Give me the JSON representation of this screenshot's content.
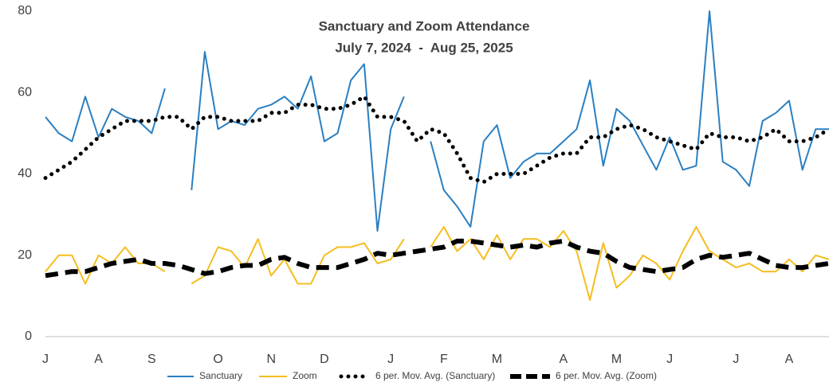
{
  "chart_data": {
    "type": "line",
    "title": "Sanctuary and Zoom Attendance",
    "subtitle": "July 7, 2024  -  Aug 25, 2025",
    "categories": [
      "J",
      null,
      null,
      null,
      "A",
      null,
      null,
      null,
      "S",
      null,
      null,
      null,
      null,
      "O",
      null,
      null,
      null,
      "N",
      null,
      null,
      null,
      "D",
      null,
      null,
      null,
      null,
      "J",
      null,
      null,
      null,
      "F",
      null,
      null,
      null,
      "M",
      null,
      null,
      null,
      null,
      "A",
      null,
      null,
      null,
      "M",
      null,
      null,
      null,
      "J",
      null,
      null,
      null,
      null,
      "J",
      null,
      null,
      null,
      "A",
      null,
      null,
      null
    ],
    "series": [
      {
        "name": "Sanctuary",
        "color": "#2a7fc1",
        "line_style": "solid",
        "values": [
          54,
          50,
          48,
          59,
          49,
          56,
          54,
          53,
          50,
          61,
          null,
          36,
          70,
          51,
          53,
          52,
          56,
          57,
          59,
          56,
          64,
          48,
          50,
          63,
          67,
          26,
          51,
          59,
          null,
          48,
          36,
          32,
          27,
          48,
          52,
          39,
          43,
          45,
          45,
          48,
          51,
          63,
          42,
          56,
          53,
          47,
          41,
          49,
          41,
          42,
          80,
          43,
          41,
          37,
          53,
          55,
          58,
          41,
          51,
          51
        ]
      },
      {
        "name": "Zoom",
        "color": "#f5bd1f",
        "line_style": "solid",
        "values": [
          16,
          20,
          20,
          13,
          20,
          18,
          22,
          18,
          18,
          16,
          null,
          13,
          15,
          22,
          21,
          17,
          24,
          15,
          19,
          13,
          13,
          20,
          22,
          22,
          23,
          18,
          19,
          24,
          null,
          22,
          27,
          21,
          24,
          19,
          25,
          19,
          24,
          24,
          22,
          26,
          21,
          9,
          23,
          12,
          15,
          20,
          18,
          14,
          21,
          27,
          21,
          19,
          17,
          18,
          16,
          16,
          19,
          16,
          20,
          19
        ]
      },
      {
        "name": "6 per. Mov. Avg. (Sanctuary)",
        "color": "#000000",
        "line_style": "dotted",
        "values": [
          39,
          41,
          43,
          46,
          49,
          51,
          53,
          53,
          53,
          54,
          54,
          51,
          54,
          54,
          53,
          53,
          53,
          55,
          55,
          57,
          57,
          56,
          56,
          57,
          59,
          54,
          54,
          53,
          48,
          51,
          50,
          45,
          39,
          38,
          40,
          40,
          40,
          42,
          44,
          45,
          45,
          49,
          49,
          51,
          52,
          51,
          49,
          48,
          47,
          46,
          50,
          49,
          49,
          48,
          49,
          51,
          48,
          48,
          49,
          51
        ]
      },
      {
        "name": "6 per. Mov. Avg. (Zoom)",
        "color": "#000000",
        "line_style": "dashed",
        "values": [
          15,
          15.5,
          16,
          16,
          17,
          18,
          18.5,
          19,
          18,
          18,
          17.5,
          16.5,
          15.5,
          16,
          17,
          17.5,
          17.5,
          19,
          19.5,
          18,
          17,
          17,
          17,
          18,
          19,
          20.5,
          20,
          20.5,
          21,
          21.5,
          22,
          23.5,
          23.5,
          23,
          22.5,
          22,
          22.5,
          22,
          23,
          23.5,
          22,
          21,
          20.5,
          18.5,
          17,
          16.5,
          16,
          16.5,
          17,
          19,
          20,
          19.5,
          20,
          20.5,
          19,
          17.5,
          17,
          17,
          17.5,
          18
        ]
      }
    ],
    "ylim": [
      0,
      80
    ],
    "yticks": [
      0,
      20,
      40,
      60,
      80
    ],
    "grid": false,
    "legend": "bottom"
  }
}
